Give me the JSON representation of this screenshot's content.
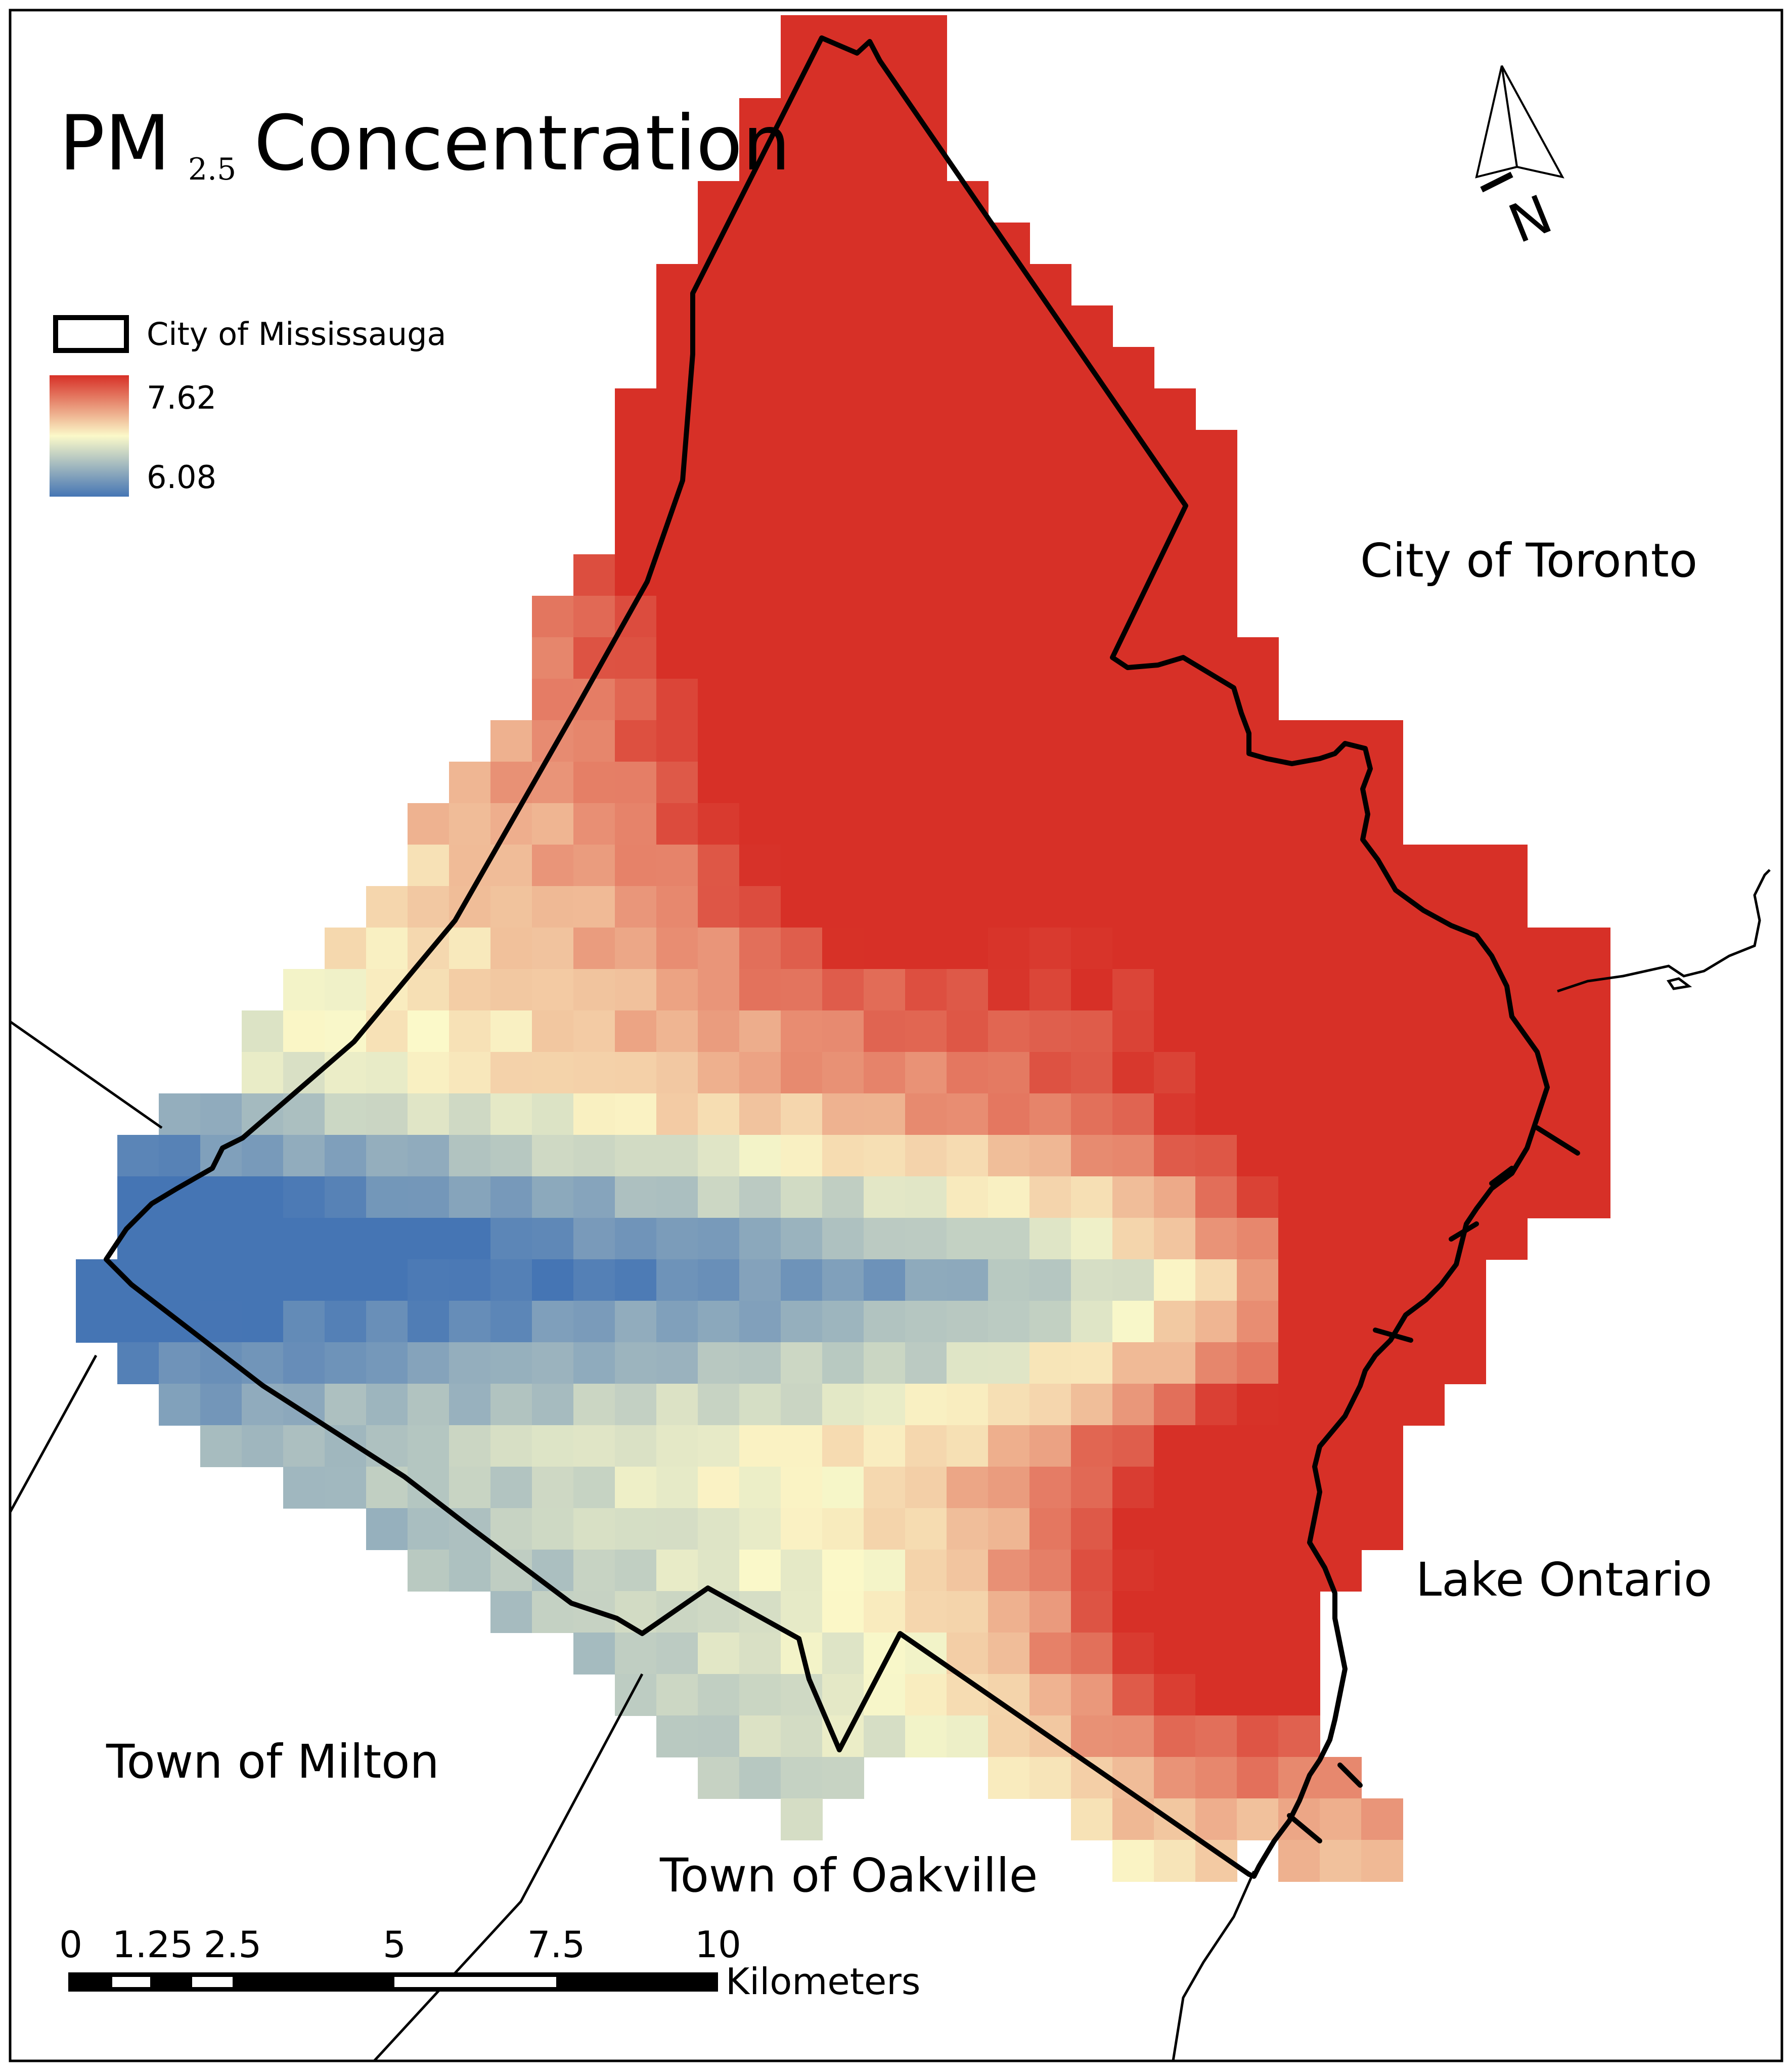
{
  "map": {
    "title_main": "PM",
    "title_sub": "2.5",
    "title_rest": "Concentration",
    "north_label": "N",
    "legend": {
      "boundary_label": "City of Mississauga",
      "high_label": "7.62",
      "low_label": "6.08",
      "ramp": {
        "high": "#d73027",
        "mid": "#fbf9c9",
        "low": "#4575b4"
      }
    },
    "place_labels": {
      "toronto": "City of Toronto",
      "lake": "Lake Ontario",
      "milton": "Town of Milton",
      "oakville": "Town of Oakville"
    },
    "scale_bar": {
      "ticks": [
        "0",
        "1.25",
        "2.5",
        "5",
        "7.5",
        "10"
      ],
      "unit": "Kilometers"
    }
  }
}
